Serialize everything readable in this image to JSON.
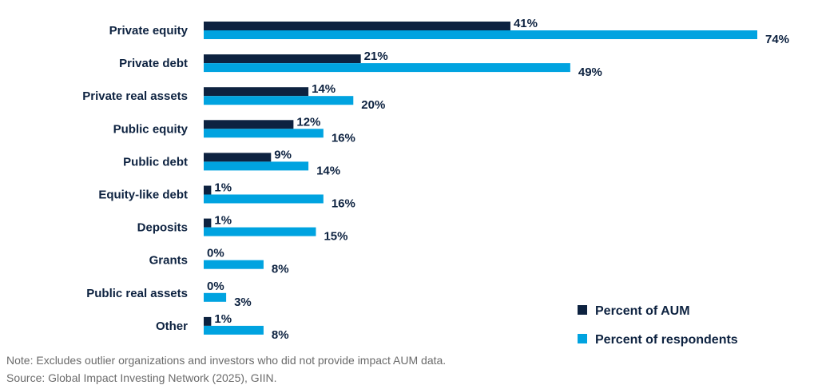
{
  "chart_data": {
    "type": "bar",
    "orientation": "horizontal",
    "categories": [
      "Private equity",
      "Private debt",
      "Private real assets",
      "Public equity",
      "Public debt",
      "Equity-like debt",
      "Deposits",
      "Grants",
      "Public real assets",
      "Other"
    ],
    "series": [
      {
        "name": "Percent of AUM",
        "color": "#0d2240",
        "values": [
          41,
          21,
          14,
          12,
          9,
          1,
          1,
          0,
          0,
          1
        ]
      },
      {
        "name": "Percent of respondents",
        "color": "#00a3e0",
        "values": [
          74,
          49,
          20,
          16,
          14,
          16,
          15,
          8,
          3,
          8
        ]
      }
    ],
    "value_suffix": "%",
    "xlim": [
      0,
      74
    ],
    "grid": false,
    "legend_position": "bottom-right"
  },
  "notes": {
    "note": "Note: Excludes outlier organizations and investors who did not provide impact AUM data.",
    "source": "Source: Global Impact Investing Network (2025), GIIN."
  }
}
